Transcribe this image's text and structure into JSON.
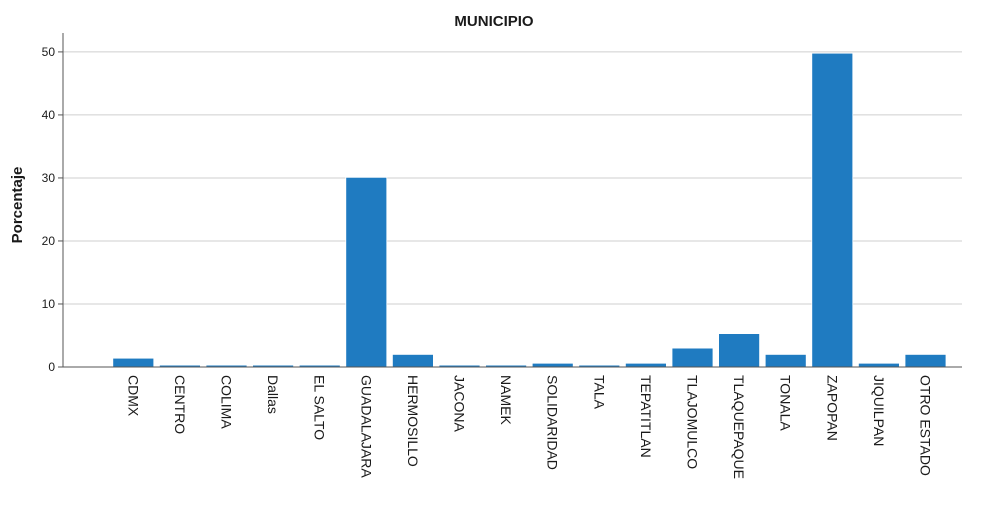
{
  "chart_data": {
    "type": "bar",
    "title": "MUNICIPIO",
    "xlabel": "",
    "ylabel": "Porcentaje",
    "ylim": [
      0,
      53
    ],
    "yticks": [
      0,
      10,
      20,
      30,
      40,
      50
    ],
    "grid": true,
    "categories": [
      "CDMX",
      "CENTRO",
      "COLIMA",
      "Dallas",
      "EL SALTO",
      "GUADALAJARA",
      "HERMOSILLO",
      "JACONA",
      "NAMEK",
      "SOLIDARIDAD",
      "TALA",
      "TEPATITLAN",
      "TLAJOMULCO",
      "TLAQUEPAQUE",
      "TONALA",
      "ZAPOPAN",
      "JIQUILPAN",
      "OTRO ESTADO"
    ],
    "values": [
      1.4,
      0.3,
      0.3,
      0.3,
      0.3,
      30.1,
      2.0,
      0.3,
      0.3,
      0.6,
      0.3,
      0.6,
      3.0,
      5.3,
      2.0,
      49.8,
      0.6,
      2.0
    ],
    "colors": {
      "bar": "#1f7bc1",
      "grid": "#cfcfcf",
      "axis": "#555555"
    }
  }
}
